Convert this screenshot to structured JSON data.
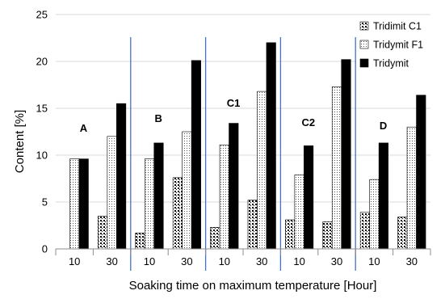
{
  "chart_data": {
    "type": "bar",
    "title": "",
    "xlabel": "Soaking time on maximum temperature [Hour]",
    "ylabel": "Content  [%]",
    "ylim": [
      0,
      25
    ],
    "yticks": [
      "0",
      "5",
      "10",
      "15",
      "20",
      "25"
    ],
    "categories": [
      "10",
      "30",
      "10",
      "30",
      "10",
      "30",
      "10",
      "30",
      "10",
      "30"
    ],
    "groups": [
      "A",
      "B",
      "C1",
      "C2",
      "D"
    ],
    "series": [
      {
        "name": "Tridimit C1",
        "pattern": "dots",
        "values": [
          0,
          3.5,
          1.7,
          7.6,
          2.3,
          5.2,
          3.1,
          2.9,
          3.9,
          3.4
        ]
      },
      {
        "name": "Tridymit F1",
        "pattern": "light",
        "values": [
          9.6,
          12.0,
          9.6,
          12.5,
          11.1,
          16.8,
          7.9,
          17.3,
          7.4,
          13.0
        ]
      },
      {
        "name": "Tridymit",
        "pattern": "solid",
        "values": [
          9.6,
          15.5,
          11.3,
          20.1,
          13.4,
          22.0,
          11.0,
          20.2,
          11.3,
          16.4
        ]
      }
    ],
    "legend_position": "top-right",
    "grid": true,
    "colors": {
      "grid": "#d9d9d9",
      "separator": "#4472c4",
      "bar_solid": "#000000"
    }
  }
}
